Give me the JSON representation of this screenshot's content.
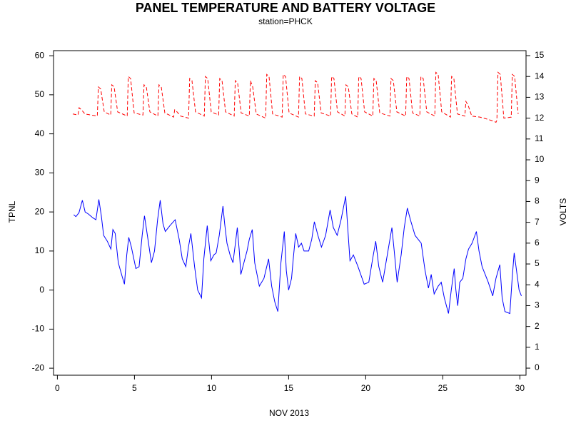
{
  "chart_data": {
    "type": "line",
    "title": "PANEL TEMPERATURE AND BATTERY VOLTAGE",
    "subtitle": "station=PHCK",
    "x_label": "NOV 2013",
    "y_label": "TPNL",
    "y2_label": "VOLTS",
    "xlim": [
      -0.25,
      30.4
    ],
    "xticks": [
      0,
      5,
      10,
      15,
      20,
      25,
      30
    ],
    "ylim": [
      -21.8,
      61.3
    ],
    "yticks": [
      -20,
      -10,
      0,
      10,
      20,
      30,
      40,
      50,
      60
    ],
    "y2lim": [
      -0.34,
      15.24
    ],
    "y2ticks": [
      0,
      1,
      2,
      3,
      4,
      5,
      6,
      7,
      8,
      9,
      10,
      11,
      12,
      13,
      14,
      15
    ],
    "grid": false,
    "series": [
      {
        "name": "TPNL",
        "color": "#0000ff",
        "style": "solid",
        "x": [
          1.06,
          1.2,
          1.4,
          1.62,
          1.8,
          2.0,
          2.3,
          2.5,
          2.69,
          2.85,
          3.0,
          3.24,
          3.47,
          3.6,
          3.75,
          3.95,
          4.2,
          4.35,
          4.5,
          4.63,
          4.8,
          5.09,
          5.3,
          5.5,
          5.65,
          5.8,
          6.1,
          6.3,
          6.5,
          6.67,
          6.85,
          7.0,
          7.3,
          7.64,
          7.9,
          8.1,
          8.33,
          8.5,
          8.66,
          8.9,
          9.1,
          9.35,
          9.5,
          9.72,
          9.95,
          10.15,
          10.3,
          10.5,
          10.74,
          10.85,
          11.0,
          11.2,
          11.39,
          11.55,
          11.67,
          11.8,
          11.9,
          12.1,
          12.3,
          12.45,
          12.64,
          12.8,
          13.1,
          13.4,
          13.7,
          13.9,
          14.1,
          14.3,
          14.5,
          14.72,
          14.85,
          15.0,
          15.19,
          15.3,
          15.46,
          15.65,
          15.83,
          16.0,
          16.3,
          16.5,
          16.67,
          16.9,
          17.13,
          17.4,
          17.69,
          17.9,
          18.15,
          18.4,
          18.7,
          18.85,
          18.98,
          19.2,
          19.5,
          19.9,
          20.2,
          20.45,
          20.65,
          20.85,
          21.1,
          21.4,
          21.7,
          21.85,
          22.04,
          22.3,
          22.5,
          22.7,
          22.9,
          23.2,
          23.6,
          23.85,
          24.07,
          24.25,
          24.44,
          24.7,
          24.9,
          25.1,
          25.37,
          25.55,
          25.74,
          25.85,
          25.97,
          26.1,
          26.3,
          26.5,
          26.67,
          26.9,
          27.18,
          27.35,
          27.55,
          27.75,
          27.95,
          28.24,
          28.45,
          28.7,
          28.85,
          29.03,
          29.35,
          29.5,
          29.63,
          29.75,
          29.95,
          30.1
        ],
        "values": [
          19.3,
          18.8,
          19.8,
          23,
          20,
          19.5,
          18.5,
          18,
          23.2,
          19,
          14,
          12.5,
          10.5,
          15.5,
          14.5,
          7,
          3.5,
          1.5,
          9,
          13.5,
          11,
          5.5,
          6,
          14,
          19,
          15,
          7,
          10,
          18,
          23,
          17,
          15,
          16.5,
          18,
          13,
          8,
          6,
          11,
          14.5,
          6,
          0,
          -2,
          8,
          16.5,
          7.5,
          9,
          9.5,
          14,
          21.5,
          17,
          12,
          9,
          7,
          12,
          16,
          10,
          4,
          7,
          10,
          13,
          15.5,
          7,
          1,
          3,
          8,
          1,
          -3,
          -5.5,
          7,
          15,
          5,
          0,
          3,
          8,
          14.5,
          11,
          12,
          10,
          10,
          13,
          17.5,
          14,
          11,
          14,
          20.5,
          16,
          14,
          18,
          24,
          15,
          7.5,
          9,
          6,
          1.5,
          2,
          8,
          12.5,
          6,
          2,
          9,
          16,
          10,
          2,
          9,
          16,
          21,
          18,
          14,
          12,
          5,
          0.5,
          4,
          -1,
          1,
          2,
          -2,
          -6,
          0,
          5.5,
          0,
          -4,
          2,
          3,
          8,
          10.5,
          12,
          15,
          10,
          6,
          4,
          2,
          -1.5,
          3,
          6.5,
          -2,
          -5.5,
          -6,
          3,
          9.5,
          6,
          0,
          -1.5
        ]
      },
      {
        "name": "VOLTS",
        "color": "#ff0000",
        "style": "dashed",
        "axis": "y2",
        "x": [
          1.0,
          1.34,
          1.41,
          1.56,
          1.79,
          2.59,
          2.66,
          2.81,
          3.04,
          3.46,
          3.53,
          3.68,
          3.91,
          4.53,
          4.6,
          4.75,
          4.98,
          5.55,
          5.62,
          5.77,
          6.0,
          6.52,
          6.59,
          6.74,
          6.97,
          7.54,
          7.61,
          7.76,
          7.99,
          8.51,
          8.58,
          8.73,
          8.96,
          9.53,
          9.6,
          9.75,
          9.98,
          10.46,
          10.53,
          10.68,
          10.91,
          11.47,
          11.54,
          11.69,
          11.92,
          12.45,
          12.52,
          12.67,
          12.9,
          13.51,
          13.58,
          13.73,
          13.96,
          14.58,
          14.65,
          14.8,
          15.03,
          15.64,
          15.71,
          15.86,
          16.09,
          16.66,
          16.73,
          16.88,
          17.11,
          17.72,
          17.79,
          17.94,
          18.17,
          18.65,
          18.72,
          18.87,
          19.1,
          19.48,
          19.55,
          19.7,
          19.93,
          20.46,
          20.53,
          20.68,
          20.91,
          21.57,
          21.64,
          21.79,
          22.02,
          22.59,
          22.66,
          22.81,
          23.04,
          23.51,
          23.58,
          23.73,
          23.96,
          24.48,
          24.55,
          24.7,
          24.93,
          25.5,
          25.57,
          25.72,
          25.95,
          26.43,
          26.5,
          26.65,
          26.88,
          27.4,
          27.9,
          28.3,
          28.45,
          28.51,
          28.58,
          28.73,
          28.96,
          29.44,
          29.51,
          29.66,
          29.89
        ],
        "values": [
          12.2,
          12.15,
          12.5,
          12.4,
          12.2,
          12.1,
          13.5,
          13.4,
          12.3,
          12.15,
          13.6,
          13.5,
          12.3,
          12.1,
          14.0,
          13.9,
          12.25,
          12.15,
          13.6,
          13.5,
          12.3,
          12.1,
          13.6,
          13.5,
          12.25,
          12.05,
          12.4,
          12.3,
          12.1,
          12.0,
          13.9,
          13.8,
          12.3,
          12.1,
          14.0,
          13.9,
          12.3,
          12.15,
          13.9,
          13.8,
          12.3,
          12.1,
          13.8,
          13.7,
          12.25,
          12.1,
          13.8,
          13.5,
          12.2,
          12.0,
          14.1,
          14.0,
          12.2,
          12.05,
          14.1,
          14.0,
          12.25,
          12.05,
          14.0,
          13.9,
          12.2,
          12.1,
          13.8,
          13.7,
          12.25,
          12.1,
          14.0,
          13.9,
          12.3,
          12.1,
          13.6,
          13.5,
          12.2,
          12.05,
          14.0,
          13.9,
          12.3,
          12.1,
          13.9,
          13.8,
          12.25,
          12.1,
          13.9,
          13.8,
          12.3,
          12.1,
          14.0,
          13.9,
          12.25,
          12.1,
          14.0,
          13.9,
          12.3,
          12.1,
          14.2,
          14.1,
          12.3,
          12.05,
          14.0,
          13.9,
          12.2,
          12.1,
          12.8,
          12.6,
          12.1,
          12.05,
          11.95,
          11.85,
          11.8,
          11.9,
          14.2,
          14.1,
          12.0,
          12.05,
          14.1,
          14.0,
          12.2
        ]
      }
    ]
  }
}
